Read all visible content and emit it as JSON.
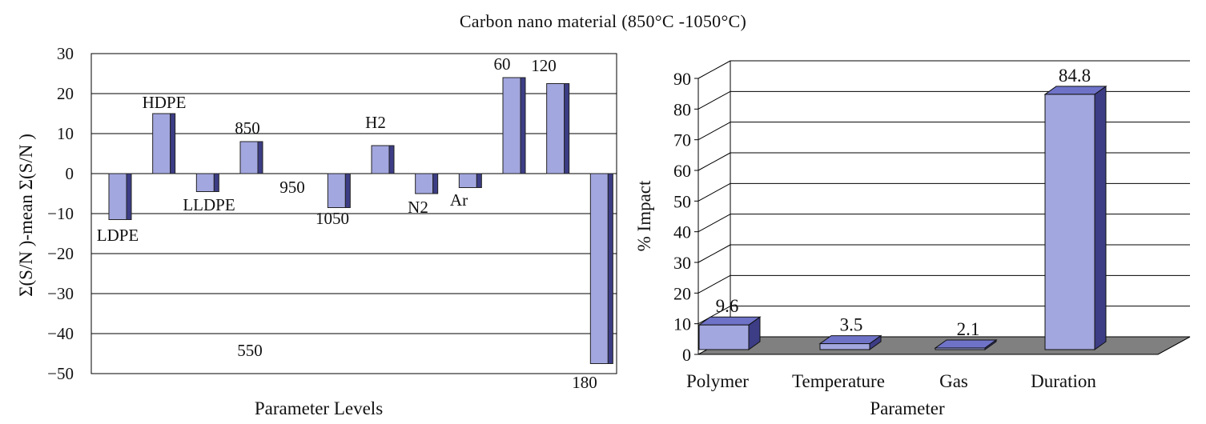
{
  "figure_title": "Carbon nano material (850°C -1050°C)",
  "colors": {
    "bar_front": "#a3a7df",
    "bar_side": "#3c3d85",
    "bar_top": "#6f73c8",
    "floor": "#808080",
    "grid": "#000000"
  },
  "chart_data": [
    {
      "type": "bar",
      "xlabel": "Parameter Levels",
      "ylabel": "Σ(S/N )-mean Σ(S/N )",
      "ylim": [
        -50,
        30
      ],
      "yticks": [
        30,
        20,
        10,
        0,
        -10,
        -20,
        -30,
        -40,
        -50
      ],
      "ytick_labels": [
        "30",
        "20",
        "10",
        "0",
        "−10",
        "−20",
        "−30",
        "−40",
        "−50"
      ],
      "grid": true,
      "categories": [
        "LDPE",
        "HDPE",
        "LLDPE",
        "850",
        "950",
        "1050",
        "H2",
        "N2",
        "Ar",
        "60",
        "120",
        "180"
      ],
      "values": [
        -11.5,
        15,
        -4.5,
        8,
        0,
        -8.5,
        7,
        -5,
        -3.5,
        24,
        22.5,
        -47.5
      ],
      "annotations": [
        "550"
      ]
    },
    {
      "type": "bar",
      "style": "3d",
      "xlabel": "Parameter",
      "ylabel": "% Impact",
      "ylim": [
        0,
        90
      ],
      "yticks": [
        0,
        10,
        20,
        30,
        40,
        50,
        60,
        70,
        80,
        90
      ],
      "grid": true,
      "categories": [
        "Polymer",
        "Temperature",
        "Gas",
        "Duration"
      ],
      "values": [
        9.6,
        3.5,
        2.1,
        84.8
      ],
      "data_labels": [
        "9.6",
        "3.5",
        "2.1",
        "84.8"
      ]
    }
  ]
}
